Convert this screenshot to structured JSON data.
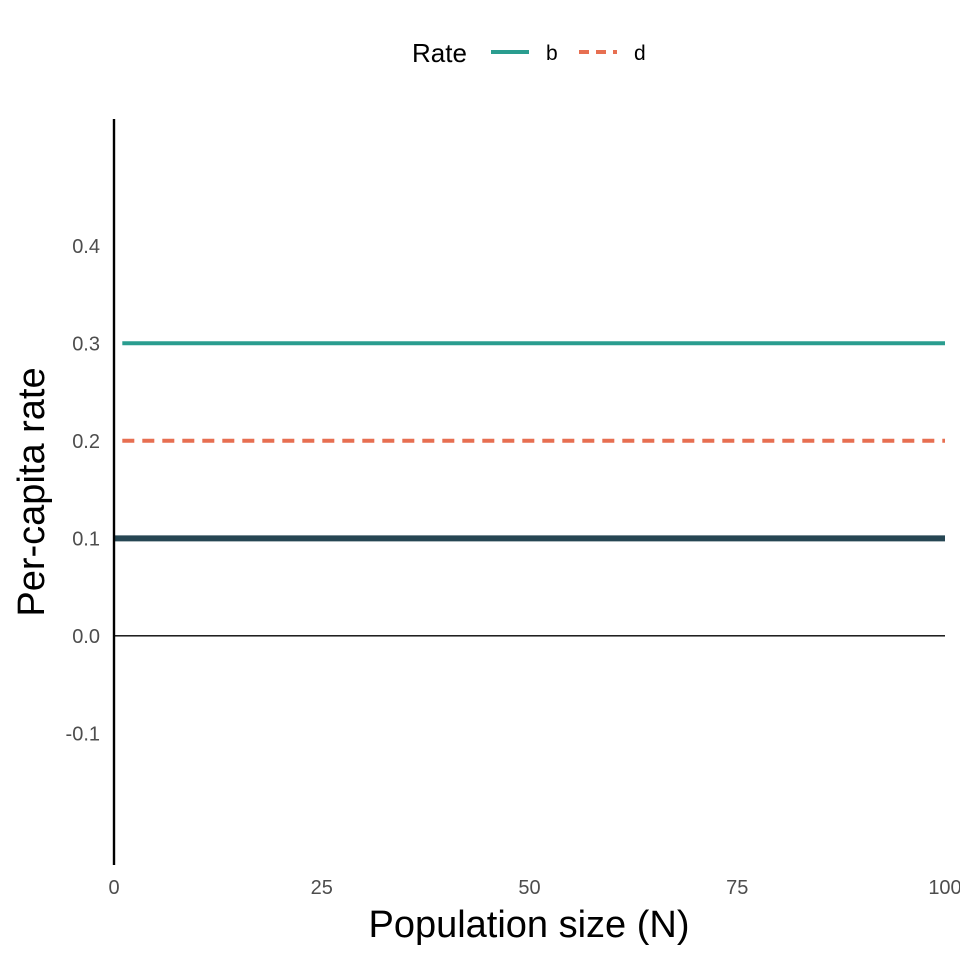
{
  "chart_data": {
    "type": "line",
    "title": "",
    "xlabel": "Population size (N)",
    "ylabel": "Per-capita rate",
    "xlim": [
      0,
      100
    ],
    "ylim": [
      -0.235,
      0.53
    ],
    "x_ticks": [
      0,
      25,
      50,
      75,
      100
    ],
    "x_tick_labels": [
      "0",
      "25",
      "50",
      "75",
      "100"
    ],
    "y_ticks": [
      -0.1,
      0.0,
      0.1,
      0.2,
      0.3,
      0.4
    ],
    "y_tick_labels": [
      "-0.1",
      "0.0",
      "0.1",
      "0.2",
      "0.3",
      "0.4"
    ],
    "grid": false,
    "legend": {
      "title": "Rate",
      "position": "top-center",
      "entries": [
        {
          "label": "b",
          "color": "#2a9d8f",
          "dash": "solid"
        },
        {
          "label": "d",
          "color": "#e76f51",
          "dash": "dashed"
        }
      ]
    },
    "series": [
      {
        "name": "b",
        "x": [
          1,
          100
        ],
        "y": [
          0.3,
          0.3
        ],
        "color": "#2a9d8f",
        "dash": "solid"
      },
      {
        "name": "d",
        "x": [
          1,
          100
        ],
        "y": [
          0.2,
          0.2
        ],
        "color": "#e76f51",
        "dash": "dashed"
      },
      {
        "x": [
          0,
          100
        ],
        "y": [
          0.1,
          0.1
        ],
        "color": "#264653",
        "dash": "solid"
      }
    ],
    "reference_lines": [
      {
        "y": 0,
        "color": "#000000"
      }
    ]
  }
}
